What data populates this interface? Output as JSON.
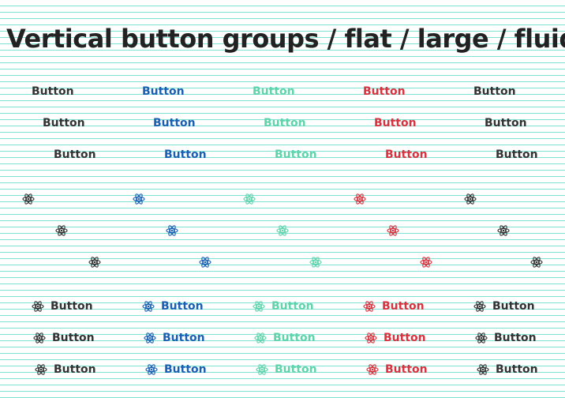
{
  "page": {
    "title": "Vertical button groups / flat / large / fluid"
  },
  "colors": {
    "default": "#333333",
    "primary": "#1a5fb4",
    "success": "#5fd3aa",
    "danger": "#d9313e",
    "neutral": "#333333"
  },
  "icon_name": "atom-icon",
  "variants": [
    "default",
    "primary",
    "success",
    "danger",
    "neutral"
  ],
  "rows": {
    "text_only": {
      "labels": [
        "Button",
        "Button",
        "Button"
      ]
    },
    "icon_only": {
      "count": 3
    },
    "icon_text": {
      "labels": [
        "Button",
        "Button",
        "Button"
      ]
    }
  },
  "groups": [
    {
      "variant": "default",
      "text": [
        "Button",
        "Button",
        "Button"
      ],
      "icon_text": [
        "Button",
        "Button",
        "Button"
      ]
    },
    {
      "variant": "primary",
      "text": [
        "Button",
        "Button",
        "Button"
      ],
      "icon_text": [
        "Button",
        "Button",
        "Button"
      ]
    },
    {
      "variant": "success",
      "text": [
        "Button",
        "Button",
        "Button"
      ],
      "icon_text": [
        "Button",
        "Button",
        "Button"
      ]
    },
    {
      "variant": "danger",
      "text": [
        "Button",
        "Button",
        "Button"
      ],
      "icon_text": [
        "Button",
        "Button",
        "Button"
      ]
    },
    {
      "variant": "neutral",
      "text": [
        "Button",
        "Button",
        "Button"
      ],
      "icon_text": [
        "Button",
        "Button",
        "Button"
      ]
    }
  ]
}
